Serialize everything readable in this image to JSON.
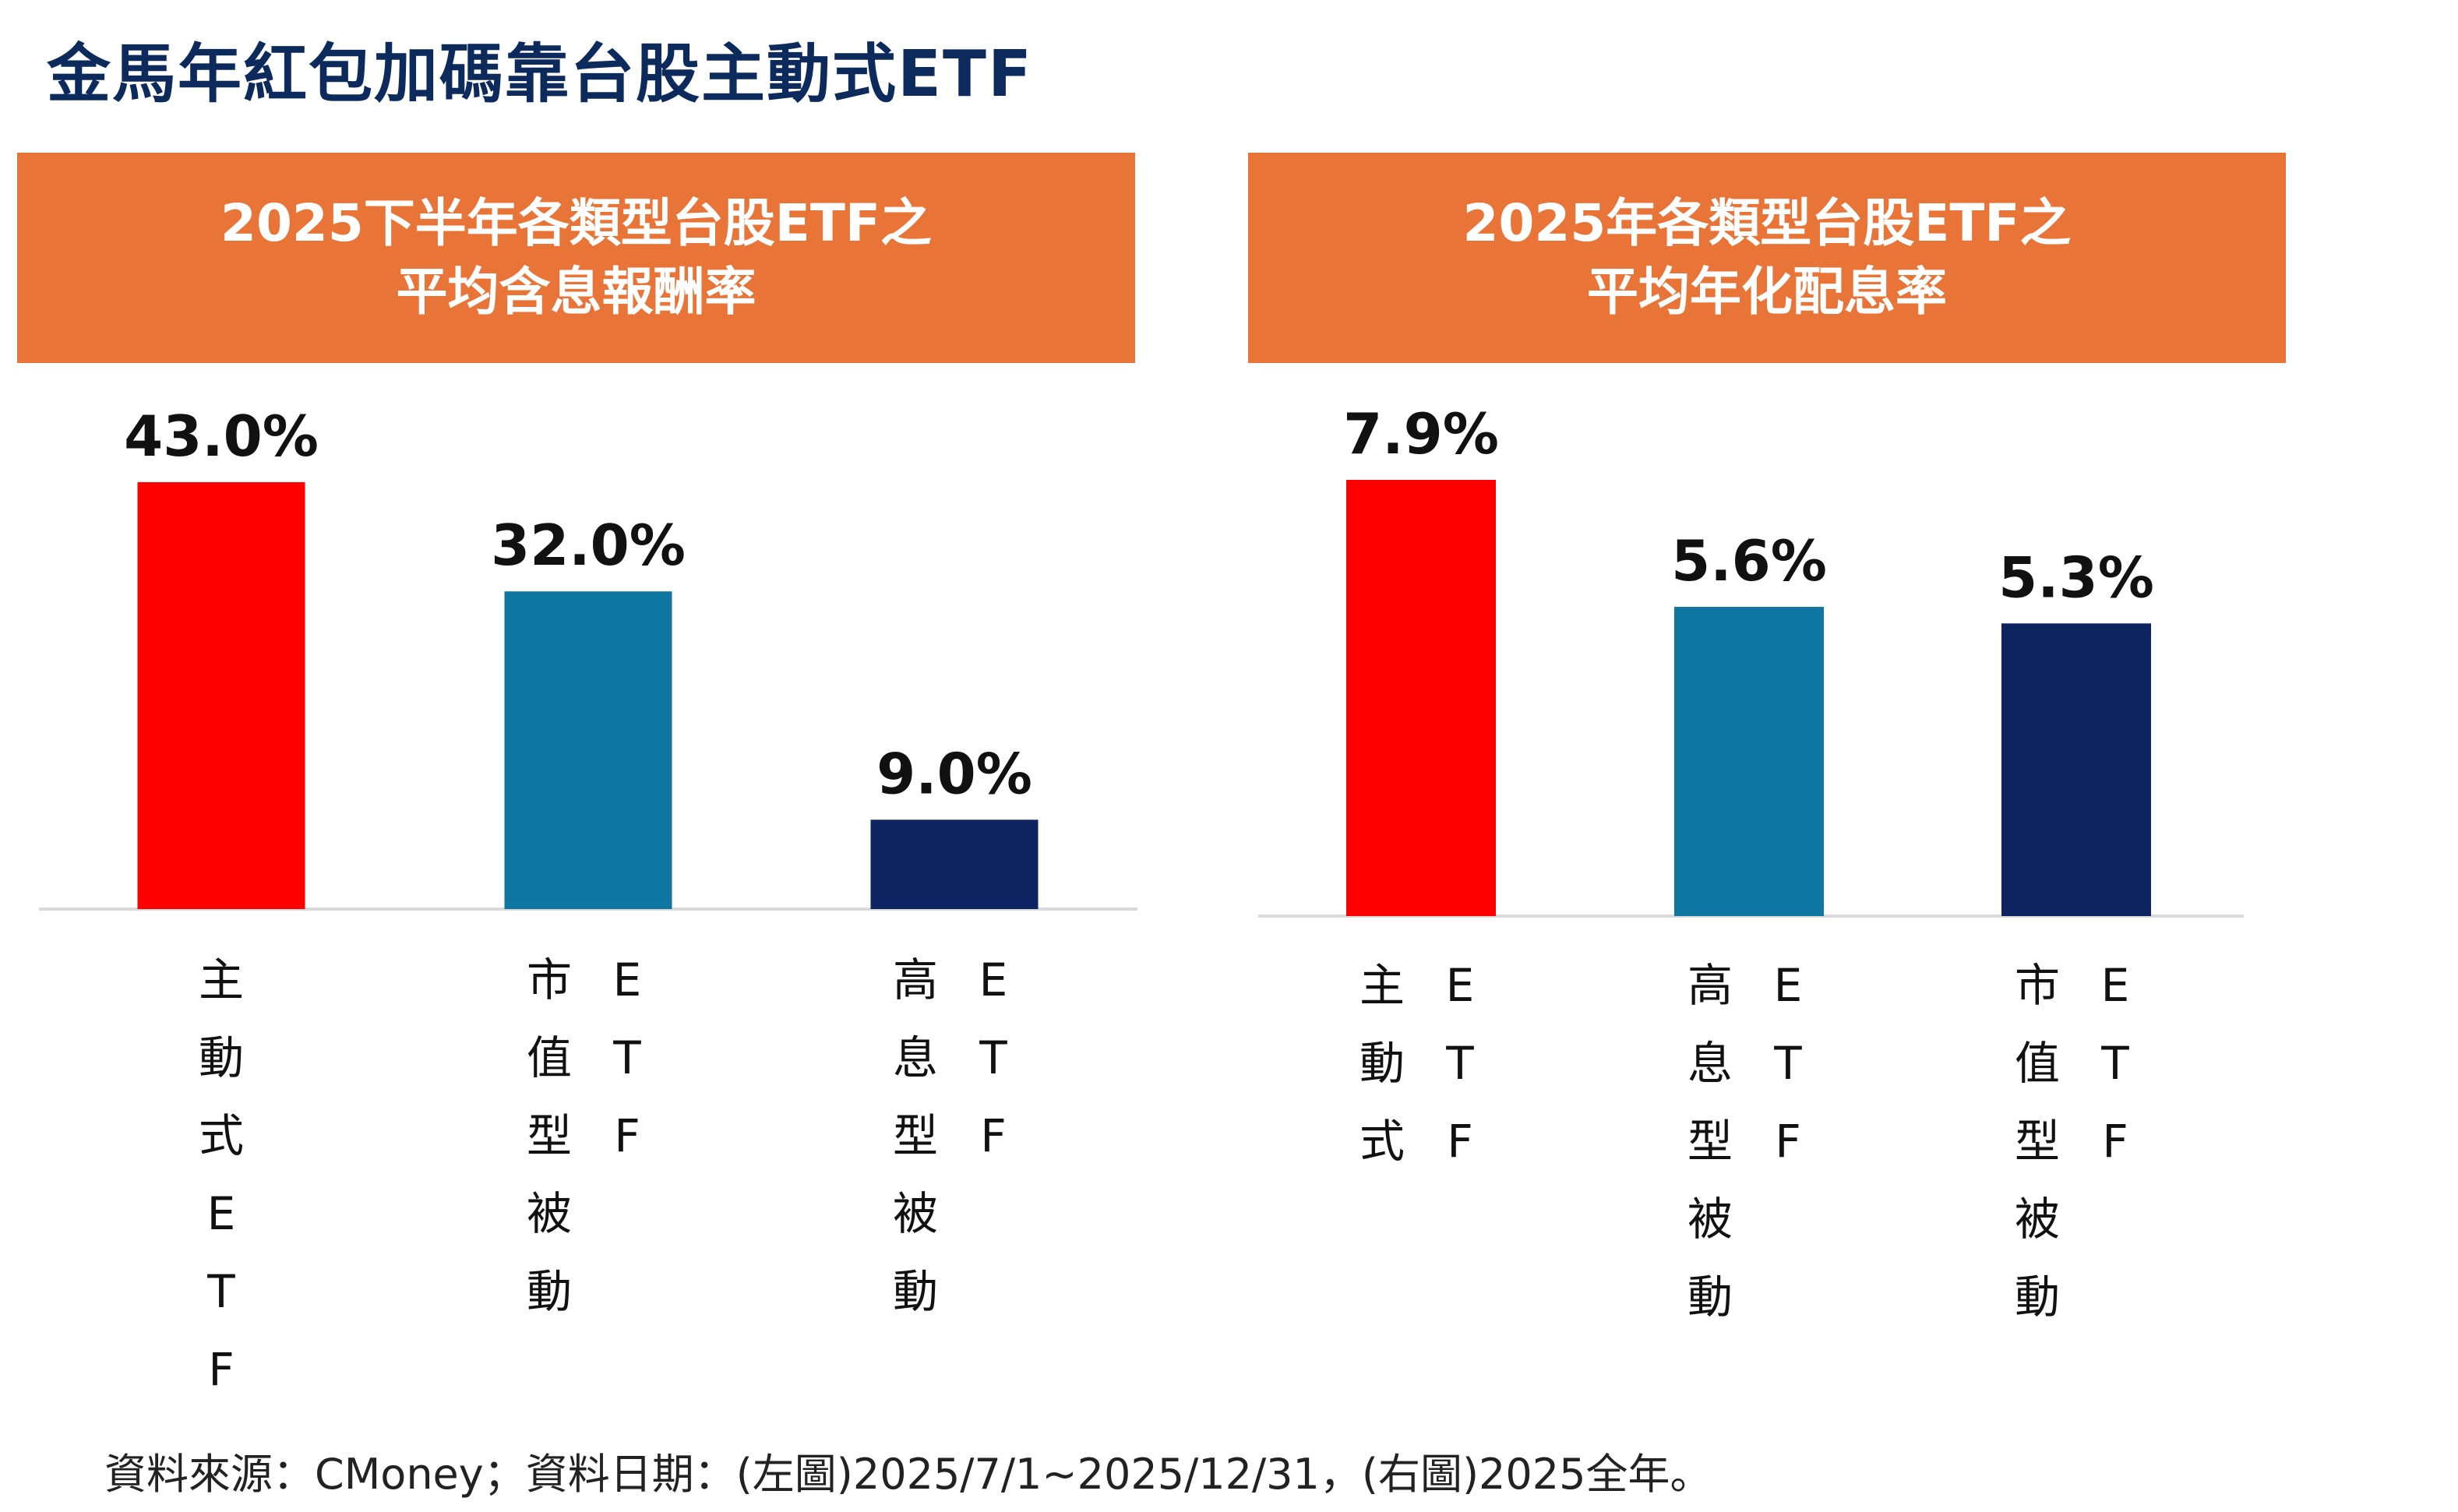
{
  "title": "金馬年紅包加碼靠台股主動式ETF",
  "colors": {
    "active": "#fe0000",
    "market_cap": "#0e76a0",
    "high_dividend": "#0d2461",
    "header": "#e97437",
    "title": "#0d2a5c"
  },
  "chart_data": [
    {
      "type": "bar",
      "title_lines": [
        "2025下半年各類型台股ETF之",
        "平均含息報酬率"
      ],
      "categories": [
        "主動式ETF",
        "市值型被動ETF",
        "高息型被動ETF"
      ],
      "category_labels": [
        {
          "lines": [
            "主動式ETF"
          ]
        },
        {
          "lines": [
            "ETF",
            "市值型被動"
          ]
        },
        {
          "lines": [
            "ETF",
            "高息型被動"
          ]
        }
      ],
      "values": [
        43.0,
        32.0,
        9.0
      ],
      "value_labels": [
        "43.0%",
        "32.0%",
        "9.0%"
      ],
      "colors": [
        "#fe0000",
        "#0e76a0",
        "#0d2461"
      ],
      "ylim": [
        0,
        43.0
      ],
      "grid": false,
      "legend": "none"
    },
    {
      "type": "bar",
      "title_lines": [
        "2025年各類型台股ETF之",
        "平均年化配息率"
      ],
      "categories": [
        "主動式ETF",
        "高息型被動ETF",
        "市值型被動ETF"
      ],
      "category_labels": [
        {
          "lines": [
            "ETF",
            "主動式"
          ]
        },
        {
          "lines": [
            "ETF",
            "高息型被動"
          ]
        },
        {
          "lines": [
            "ETF",
            "市值型被動"
          ]
        }
      ],
      "values": [
        7.9,
        5.6,
        5.3
      ],
      "value_labels": [
        "7.9%",
        "5.6%",
        "5.3%"
      ],
      "colors": [
        "#fe0000",
        "#0e76a0",
        "#0d2461"
      ],
      "ylim": [
        0,
        7.9
      ],
      "grid": false,
      "legend": "none"
    }
  ],
  "source_note": "資料來源：CMoney；資料日期：(左圖)2025/7/1~2025/12/31，(右圖)2025全年。"
}
